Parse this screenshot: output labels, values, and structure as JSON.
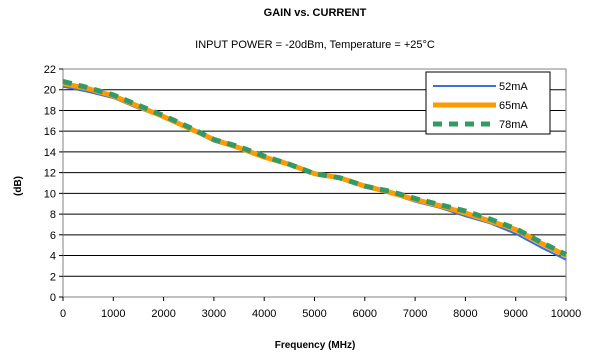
{
  "chart_data": {
    "type": "line",
    "title": "GAIN vs. CURRENT",
    "subtitle": "INPUT POWER = -20dBm, Temperature = +25°C",
    "xlabel": "Frequency (MHz)",
    "ylabel": "(dB)",
    "xlim": [
      0,
      10000
    ],
    "ylim": [
      0,
      22
    ],
    "xticks": [
      0,
      1000,
      2000,
      3000,
      4000,
      5000,
      6000,
      7000,
      8000,
      9000,
      10000
    ],
    "yticks": [
      0,
      2,
      4,
      6,
      8,
      10,
      12,
      14,
      16,
      18,
      20,
      22
    ],
    "grid": "horizontal",
    "legend_position": "top-right",
    "x": [
      0,
      500,
      1000,
      1500,
      2000,
      2500,
      3000,
      3500,
      4000,
      4500,
      5000,
      5500,
      6000,
      6500,
      7000,
      7500,
      8000,
      8500,
      9000,
      9500,
      10000
    ],
    "series": [
      {
        "name": "52mA",
        "color": "#3b6fe0",
        "style": "solid-thin",
        "values": [
          20.3,
          19.8,
          19.2,
          18.2,
          17.3,
          16.2,
          15.0,
          14.3,
          13.4,
          12.7,
          11.8,
          11.4,
          10.6,
          10.0,
          9.2,
          8.6,
          7.8,
          7.1,
          6.1,
          4.8,
          3.6
        ]
      },
      {
        "name": "65mA",
        "color": "#ff9a00",
        "style": "solid-thick",
        "values": [
          20.6,
          20.1,
          19.4,
          18.4,
          17.4,
          16.3,
          15.2,
          14.4,
          13.5,
          12.8,
          11.9,
          11.5,
          10.7,
          10.1,
          9.4,
          8.8,
          8.1,
          7.3,
          6.5,
          5.2,
          4.0
        ]
      },
      {
        "name": "78mA",
        "color": "#339966",
        "style": "dashed",
        "values": [
          20.8,
          20.2,
          19.5,
          18.5,
          17.5,
          16.4,
          15.2,
          14.5,
          13.6,
          12.8,
          11.9,
          11.5,
          10.7,
          10.2,
          9.5,
          8.9,
          8.3,
          7.5,
          6.6,
          5.3,
          4.1
        ]
      }
    ]
  }
}
